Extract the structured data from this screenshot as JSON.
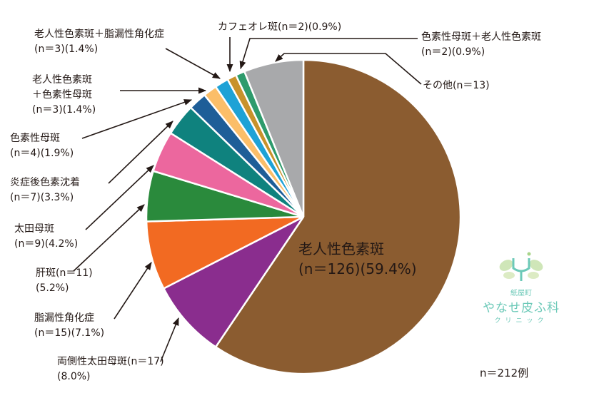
{
  "chart_data": {
    "type": "pie",
    "title": "",
    "total_label": "n＝212例",
    "start": "12 o'clock, clockwise",
    "slices": [
      {
        "name": "老人性色素斑",
        "n": 126,
        "pct": 59.4,
        "color": "#8B5C30",
        "label": [
          "老人性色素斑",
          "(n＝126)(59.4%)"
        ]
      },
      {
        "name": "両側性太田母斑",
        "n": 17,
        "pct": 8.0,
        "color": "#8A2D8E",
        "label": [
          "両側性太田母斑(n＝17)",
          "(8.0%)"
        ]
      },
      {
        "name": "脂漏性角化症",
        "n": 15,
        "pct": 7.1,
        "color": "#F26A22",
        "label": [
          "脂漏性角化症",
          "(n＝15)(7.1%)"
        ]
      },
      {
        "name": "肝斑",
        "n": 11,
        "pct": 5.2,
        "color": "#2A8A3C",
        "label": [
          "肝斑(n＝11)",
          "(5.2%)"
        ]
      },
      {
        "name": "太田母斑",
        "n": 9,
        "pct": 4.2,
        "color": "#EC679E",
        "label": [
          "太田母斑",
          "(n＝9)(4.2%)"
        ]
      },
      {
        "name": "炎症後色素沈着",
        "n": 7,
        "pct": 3.3,
        "color": "#0F827E",
        "label": [
          "炎症後色素沈着",
          "(n＝7)(3.3%)"
        ]
      },
      {
        "name": "色素性母斑",
        "n": 4,
        "pct": 1.9,
        "color": "#1E5E98",
        "label": [
          "色素性母斑",
          "(n＝4)(1.9%)"
        ]
      },
      {
        "name": "老人性色素斑＋色素性母斑",
        "n": 3,
        "pct": 1.4,
        "color": "#FBBE69",
        "label": [
          "老人性色素斑",
          "＋色素性母斑",
          "(n＝3)(1.4%)"
        ]
      },
      {
        "name": "老人性色素斑＋脂漏性角化症",
        "n": 3,
        "pct": 1.4,
        "color": "#1EA2D6",
        "label": [
          "老人性色素斑＋脂漏性角化症",
          "(n＝3)(1.4%)"
        ]
      },
      {
        "name": "カフェオレ斑",
        "n": 2,
        "pct": 0.9,
        "color": "#C8922B",
        "label": [
          "カフェオレ斑(n＝2)(0.9%)"
        ]
      },
      {
        "name": "色素性母斑＋老人性色素斑",
        "n": 2,
        "pct": 0.9,
        "color": "#2E9B6C",
        "label": [
          "色素性母斑＋老人性色素斑",
          "(n＝2)(0.9%)"
        ]
      },
      {
        "name": "その他",
        "n": 13,
        "color": "#A8A9AB",
        "label": [
          "その他(n＝13)"
        ]
      }
    ]
  },
  "logo": {
    "line1": "紙屋町",
    "line2": "やなせ皮ふ科",
    "line3": "クリニック"
  }
}
